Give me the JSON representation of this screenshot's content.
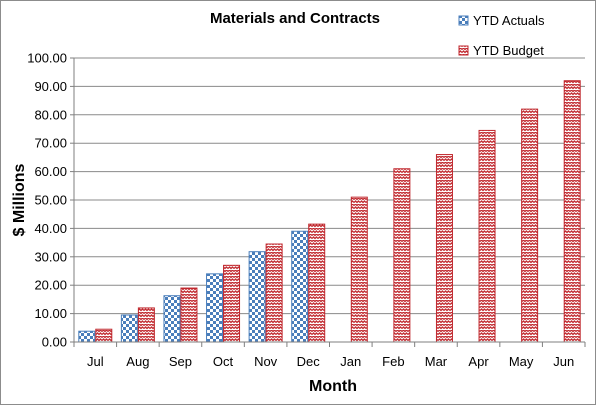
{
  "chart_data": {
    "type": "bar",
    "title": "Materials and Contracts",
    "xlabel": "Month",
    "ylabel": "$ Millions",
    "categories": [
      "Jul",
      "Aug",
      "Sep",
      "Oct",
      "Nov",
      "Dec",
      "Jan",
      "Feb",
      "Mar",
      "Apr",
      "May",
      "Jun"
    ],
    "series": [
      {
        "name": "YTD Actuals",
        "color": "#4a7ebb",
        "pattern": "checker",
        "values": [
          3.8,
          9.5,
          16.3,
          24.0,
          31.8,
          39.0,
          null,
          null,
          null,
          null,
          null,
          null
        ]
      },
      {
        "name": "YTD Budget",
        "color": "#c0272d",
        "pattern": "zigzag",
        "values": [
          4.5,
          12.0,
          19.0,
          27.0,
          34.5,
          41.5,
          51.0,
          61.0,
          66.0,
          74.5,
          82.0,
          92.0
        ]
      }
    ],
    "ylim": [
      0,
      100
    ],
    "ytick_labels": [
      "0.00",
      "10.00",
      "20.00",
      "30.00",
      "40.00",
      "50.00",
      "60.00",
      "70.00",
      "80.00",
      "90.00",
      "100.00"
    ],
    "grid": true,
    "legend_position": "top-right"
  }
}
